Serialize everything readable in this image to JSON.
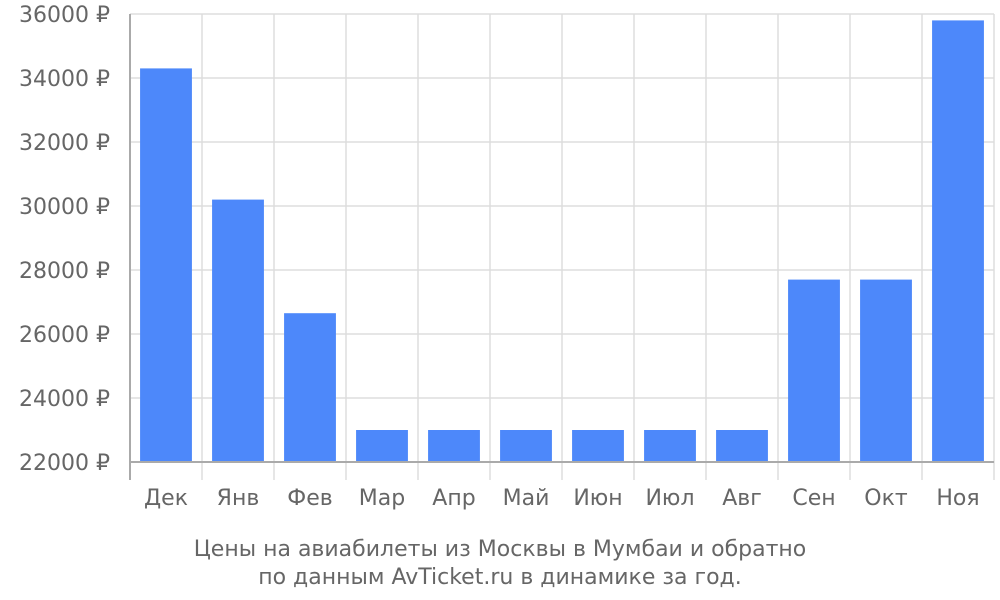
{
  "chart_data": {
    "type": "bar",
    "categories": [
      "Дек",
      "Янв",
      "Фев",
      "Мар",
      "Апр",
      "Май",
      "Июн",
      "Июл",
      "Авг",
      "Сен",
      "Окт",
      "Ноя"
    ],
    "values": [
      34300,
      30200,
      26650,
      23000,
      23000,
      23000,
      23000,
      23000,
      23000,
      27700,
      27700,
      35800
    ],
    "ylim": [
      22000,
      36000
    ],
    "yticks": [
      22000,
      24000,
      26000,
      28000,
      30000,
      32000,
      34000,
      36000
    ],
    "ytick_labels": [
      "22000 ₽",
      "24000 ₽",
      "26000 ₽",
      "28000 ₽",
      "30000 ₽",
      "32000 ₽",
      "34000 ₽",
      "36000 ₽"
    ],
    "grid": true,
    "caption_lines": [
      "Цены на авиабилеты из Москвы в Мумбаи и обратно",
      "по данным AvTicket.ru в динамике за год."
    ],
    "colors": {
      "bar": "#4d88fa",
      "grid": "#dddddd",
      "axis": "#aaaaaa",
      "text": "#666666"
    }
  }
}
